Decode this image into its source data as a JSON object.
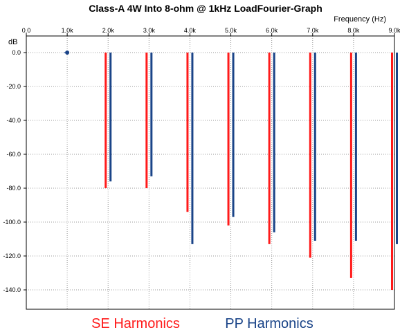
{
  "chart_data": {
    "type": "bar",
    "title": "Class-A 4W Into 8-ohm @ 1kHz LoadFourier-Graph",
    "xlabel": "Frequency  (Hz)",
    "ylabel": "dB",
    "xlim": [
      0,
      9000
    ],
    "ylim": [
      -150,
      0
    ],
    "x_tick_labels": [
      "0.0",
      "1.0k",
      "2.0k",
      "3.0k",
      "4.0k",
      "5.0k",
      "6.0k",
      "7.0k",
      "8.0k",
      "9.0k"
    ],
    "y_tick_labels": [
      "0.0",
      "-20.0",
      "-40.0",
      "-60.0",
      "-80.0",
      "-100.0",
      "-120.0",
      "-140.0"
    ],
    "grid": true,
    "legend_position": "bottom",
    "fundamental": {
      "x": 1000,
      "y": 0
    },
    "series": [
      {
        "name": "SE Harmonics",
        "color": "#ff1a1a",
        "x": [
          2000,
          3000,
          4000,
          5000,
          6000,
          7000,
          8000,
          9000
        ],
        "values": [
          -80,
          -80,
          -94,
          -102,
          -113,
          -121,
          -133,
          -140
        ]
      },
      {
        "name": "PP Harmonics",
        "color": "#1a4488",
        "x": [
          2000,
          3000,
          4000,
          5000,
          6000,
          7000,
          8000,
          9000
        ],
        "values": [
          -76,
          -73,
          -113,
          -97,
          -106,
          -111,
          -111,
          -113
        ]
      }
    ]
  }
}
